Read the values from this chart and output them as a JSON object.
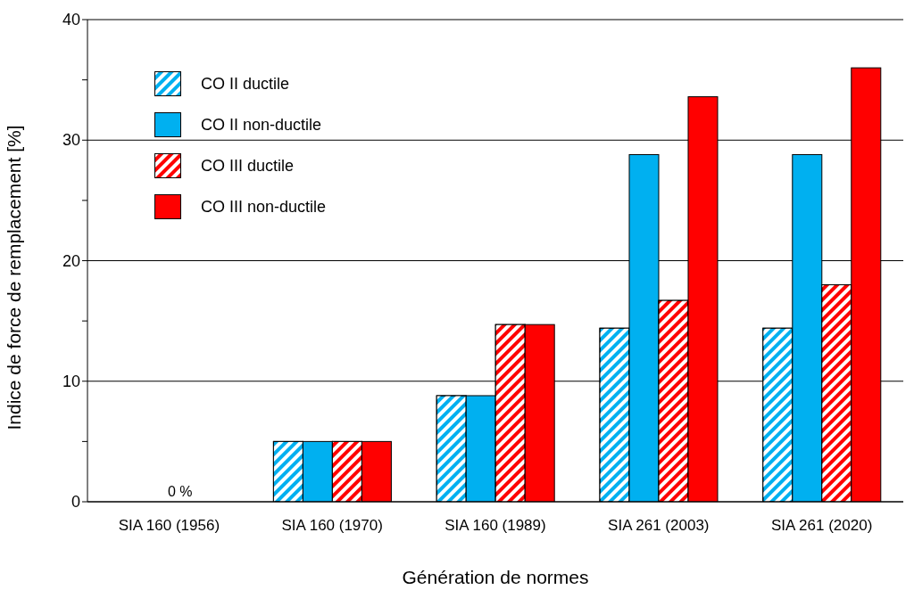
{
  "chart_data": {
    "type": "bar",
    "xlabel": "Génération de normes",
    "ylabel": "Indice de force de remplacement [%]",
    "categories": [
      "SIA 160 (1956)",
      "SIA 160 (1970)",
      "SIA 160 (1989)",
      "SIA 261 (2003)",
      "SIA 261 (2020)"
    ],
    "series": [
      {
        "name": "CO II ductile",
        "color": "#00b0f0",
        "values": [
          0,
          5,
          8.8,
          14.4,
          14.4
        ]
      },
      {
        "name": "CO II non-ductile",
        "color": "#00b0f0",
        "values": [
          0,
          5,
          8.8,
          28.8,
          28.8
        ]
      },
      {
        "name": "CO III ductile",
        "color": "#ff0000",
        "values": [
          0,
          5,
          14.7,
          16.7,
          18.0
        ]
      },
      {
        "name": "CO III non-ductile",
        "color": "#ff0000",
        "values": [
          0,
          5,
          14.7,
          33.6,
          36
        ]
      }
    ],
    "ylim": [
      0,
      40
    ],
    "yticks": [
      0,
      {
        "value": 5,
        "label": null
      },
      10,
      {
        "value": 15,
        "label": null
      },
      20,
      {
        "value": 25,
        "label": null
      },
      30,
      {
        "value": 35,
        "label": null
      },
      40
    ],
    "grid": "y",
    "legend": "top left",
    "annotations": [
      "0 %"
    ]
  }
}
